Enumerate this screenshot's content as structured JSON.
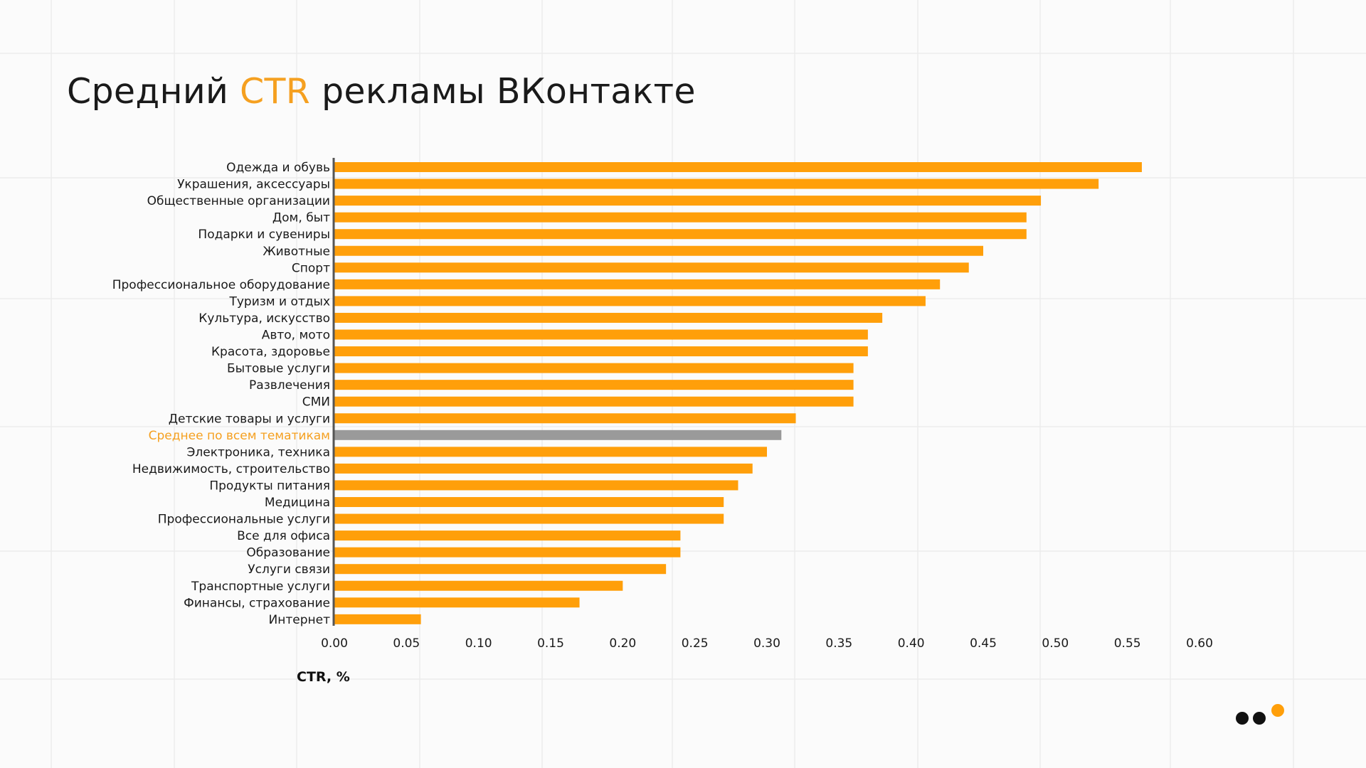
{
  "title": {
    "part1": "Средний ",
    "accent": "CTR",
    "part2": " рекламы ВКонтакте"
  },
  "colors": {
    "bar": "#ff9f0a",
    "average_bar": "#9a9a9a",
    "accent": "#f5a020",
    "text": "#1a1a1a",
    "axis": "#555555"
  },
  "chart_data": {
    "type": "bar",
    "orientation": "horizontal",
    "categories": [
      "Одежда и обувь",
      "Украшения, аксессуары",
      "Общественные организации",
      "Дом, быт",
      "Подарки и сувениры",
      "Животные",
      "Спорт",
      "Профессиональное оборудование",
      "Туризм и отдых",
      "Культура, искусство",
      "Авто, мото",
      "Красота, здоровье",
      "Бытовые услуги",
      "Развлечения",
      "СМИ",
      "Детские товары и услуги",
      "Среднее по всем тематикам",
      "Электроника, техника",
      "Недвижимость, строительство",
      "Продукты питания",
      "Медицина",
      "Профессиональные услуги",
      "Все для офиса",
      "Образование",
      "Услуги связи",
      "Транспортные услуги",
      "Финансы, страхование",
      "Интернет"
    ],
    "values": [
      0.56,
      0.53,
      0.49,
      0.48,
      0.48,
      0.45,
      0.44,
      0.42,
      0.41,
      0.38,
      0.37,
      0.37,
      0.36,
      0.36,
      0.36,
      0.32,
      0.31,
      0.3,
      0.29,
      0.28,
      0.27,
      0.27,
      0.24,
      0.24,
      0.23,
      0.2,
      0.17,
      0.06
    ],
    "highlight_category": "Среднее по всем тематикам",
    "xlabel": "CTR, %",
    "ylabel": "",
    "xlim": [
      0,
      0.6
    ],
    "xticks": [
      "0.00",
      "0.05",
      "0.10",
      "0.15",
      "0.20",
      "0.25",
      "0.30",
      "0.35",
      "0.40",
      "0.45",
      "0.50",
      "0.55",
      "0.60"
    ],
    "grid": false,
    "legend": "none"
  }
}
